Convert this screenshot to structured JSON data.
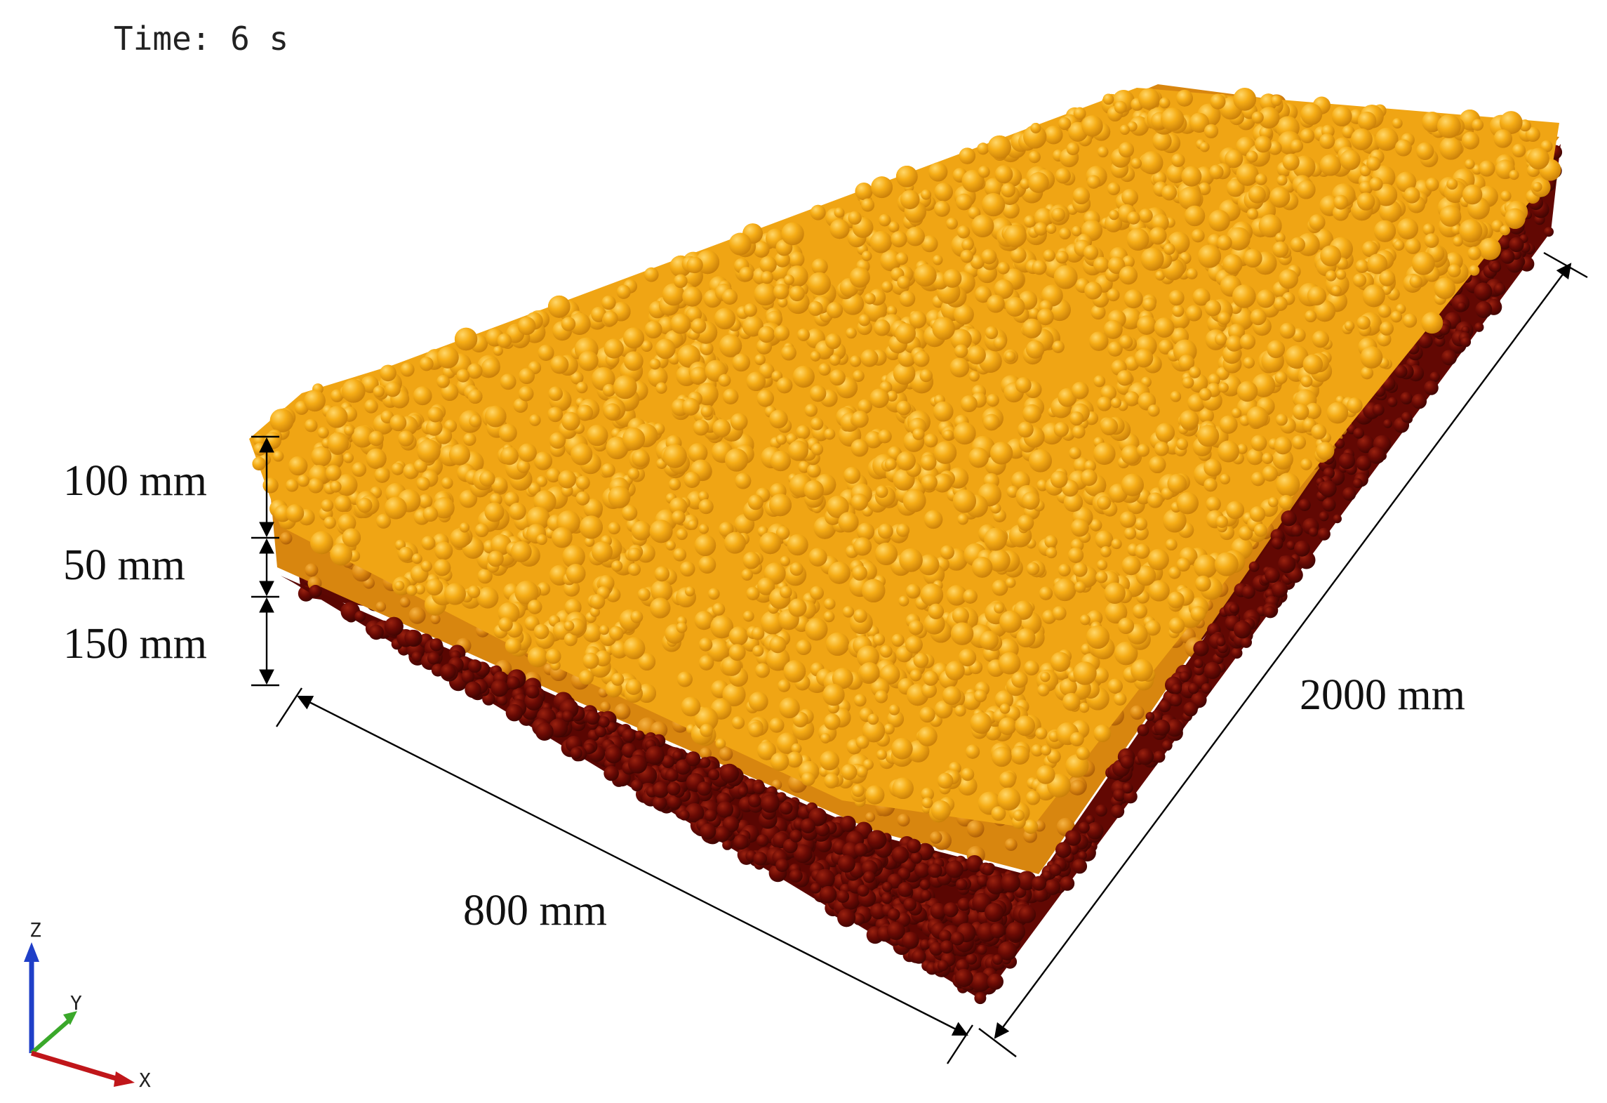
{
  "time_label": "Time: 6 s",
  "dimensions": {
    "top_layer_thickness": "100 mm",
    "middle_layer_thickness": "50 mm",
    "bottom_layer_thickness": "150 mm",
    "width": "800 mm",
    "length": "2000 mm"
  },
  "axes": {
    "x": "X",
    "y": "Y",
    "z": "Z"
  },
  "colors": {
    "top_layer": "#f2a413",
    "middle_layer": "#de8a10",
    "bottom_layer": "#6a0a04",
    "axis_x": "#c0161a",
    "axis_y": "#3aa82a",
    "axis_z": "#1f3fc8"
  },
  "icons": [
    "axis-triad-icon"
  ]
}
